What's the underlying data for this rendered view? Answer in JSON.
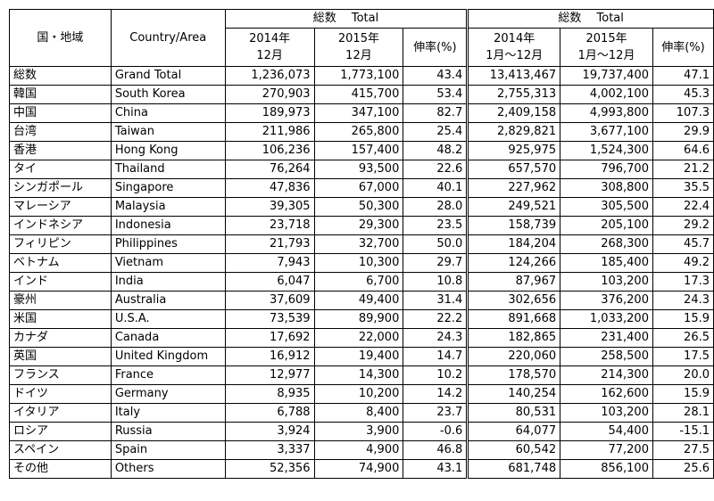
{
  "header": {
    "country_jp": "国・地域",
    "country_en": "Country/Area",
    "group1_title": "総数　 Total",
    "group2_title": "総数　 Total",
    "g1_col1_line1": "2014年",
    "g1_col1_line2": "12月",
    "g1_col2_line1": "2015年",
    "g1_col2_line2": "12月",
    "g1_col3": "伸率(%)",
    "g2_col1_line1": "2014年",
    "g2_col1_line2": "1月～12月",
    "g2_col2_line1": "2015年",
    "g2_col2_line2": "1月～12月",
    "g2_col3": "伸率(%)"
  },
  "rows": [
    {
      "jp": "総数",
      "en": "Grand Total",
      "dec2014": "1,236,073",
      "dec2015": "1,773,100",
      "rate1": "43.4",
      "y2014": "13,413,467",
      "y2015": "19,737,400",
      "rate2": "47.1"
    },
    {
      "jp": "韓国",
      "en": "South Korea",
      "dec2014": "270,903",
      "dec2015": "415,700",
      "rate1": "53.4",
      "y2014": "2,755,313",
      "y2015": "4,002,100",
      "rate2": "45.3"
    },
    {
      "jp": "中国",
      "en": "China",
      "dec2014": "189,973",
      "dec2015": "347,100",
      "rate1": "82.7",
      "y2014": "2,409,158",
      "y2015": "4,993,800",
      "rate2": "107.3"
    },
    {
      "jp": "台湾",
      "en": "Taiwan",
      "dec2014": "211,986",
      "dec2015": "265,800",
      "rate1": "25.4",
      "y2014": "2,829,821",
      "y2015": "3,677,100",
      "rate2": "29.9"
    },
    {
      "jp": "香港",
      "en": "Hong Kong",
      "dec2014": "106,236",
      "dec2015": "157,400",
      "rate1": "48.2",
      "y2014": "925,975",
      "y2015": "1,524,300",
      "rate2": "64.6"
    },
    {
      "jp": "タイ",
      "en": "Thailand",
      "dec2014": "76,264",
      "dec2015": "93,500",
      "rate1": "22.6",
      "y2014": "657,570",
      "y2015": "796,700",
      "rate2": "21.2"
    },
    {
      "jp": "シンガポール",
      "en": "Singapore",
      "dec2014": "47,836",
      "dec2015": "67,000",
      "rate1": "40.1",
      "y2014": "227,962",
      "y2015": "308,800",
      "rate2": "35.5"
    },
    {
      "jp": "マレーシア",
      "en": "Malaysia",
      "dec2014": "39,305",
      "dec2015": "50,300",
      "rate1": "28.0",
      "y2014": "249,521",
      "y2015": "305,500",
      "rate2": "22.4"
    },
    {
      "jp": "インドネシア",
      "en": "Indonesia",
      "dec2014": "23,718",
      "dec2015": "29,300",
      "rate1": "23.5",
      "y2014": "158,739",
      "y2015": "205,100",
      "rate2": "29.2"
    },
    {
      "jp": "フィリピン",
      "en": "Philippines",
      "dec2014": "21,793",
      "dec2015": "32,700",
      "rate1": "50.0",
      "y2014": "184,204",
      "y2015": "268,300",
      "rate2": "45.7"
    },
    {
      "jp": "ベトナム",
      "en": "Vietnam",
      "dec2014": "7,943",
      "dec2015": "10,300",
      "rate1": "29.7",
      "y2014": "124,266",
      "y2015": "185,400",
      "rate2": "49.2"
    },
    {
      "jp": "インド",
      "en": "India",
      "dec2014": "6,047",
      "dec2015": "6,700",
      "rate1": "10.8",
      "y2014": "87,967",
      "y2015": "103,200",
      "rate2": "17.3"
    },
    {
      "jp": "豪州",
      "en": "Australia",
      "dec2014": "37,609",
      "dec2015": "49,400",
      "rate1": "31.4",
      "y2014": "302,656",
      "y2015": "376,200",
      "rate2": "24.3"
    },
    {
      "jp": "米国",
      "en": "U.S.A.",
      "dec2014": "73,539",
      "dec2015": "89,900",
      "rate1": "22.2",
      "y2014": "891,668",
      "y2015": "1,033,200",
      "rate2": "15.9"
    },
    {
      "jp": "カナダ",
      "en": "Canada",
      "dec2014": "17,692",
      "dec2015": "22,000",
      "rate1": "24.3",
      "y2014": "182,865",
      "y2015": "231,400",
      "rate2": "26.5"
    },
    {
      "jp": "英国",
      "en": "United Kingdom",
      "dec2014": "16,912",
      "dec2015": "19,400",
      "rate1": "14.7",
      "y2014": "220,060",
      "y2015": "258,500",
      "rate2": "17.5"
    },
    {
      "jp": "フランス",
      "en": "France",
      "dec2014": "12,977",
      "dec2015": "14,300",
      "rate1": "10.2",
      "y2014": "178,570",
      "y2015": "214,300",
      "rate2": "20.0"
    },
    {
      "jp": "ドイツ",
      "en": "Germany",
      "dec2014": "8,935",
      "dec2015": "10,200",
      "rate1": "14.2",
      "y2014": "140,254",
      "y2015": "162,600",
      "rate2": "15.9"
    },
    {
      "jp": "イタリア",
      "en": "Italy",
      "dec2014": "6,788",
      "dec2015": "8,400",
      "rate1": "23.7",
      "y2014": "80,531",
      "y2015": "103,200",
      "rate2": "28.1"
    },
    {
      "jp": "ロシア",
      "en": "Russia",
      "dec2014": "3,924",
      "dec2015": "3,900",
      "rate1": "-0.6",
      "y2014": "64,077",
      "y2015": "54,400",
      "rate2": "-15.1"
    },
    {
      "jp": "スペイン",
      "en": "Spain",
      "dec2014": "3,337",
      "dec2015": "4,900",
      "rate1": "46.8",
      "y2014": "60,542",
      "y2015": "77,200",
      "rate2": "27.5"
    },
    {
      "jp": "その他",
      "en": "Others",
      "dec2014": "52,356",
      "dec2015": "74,900",
      "rate1": "43.1",
      "y2014": "681,748",
      "y2015": "856,100",
      "rate2": "25.6"
    }
  ]
}
